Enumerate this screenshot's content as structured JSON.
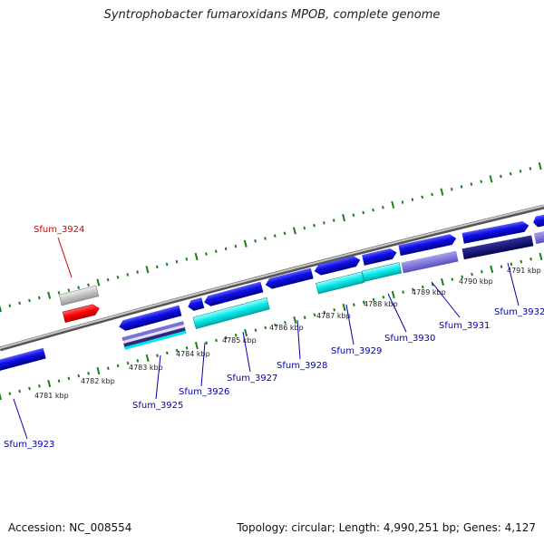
{
  "title": "Syntrophobacter fumaroxidans MPOB, complete genome",
  "accession_label": "Accession: NC_008554",
  "summary": "Topology: circular; Length: 4,990,251 bp; Genes: 4,127",
  "colors": {
    "forward_gene": "#1010e8",
    "cds_cyan": "#00e8e8",
    "highlight": "#ff0000",
    "label_blue": "#0000aa",
    "label_red": "#cc0000",
    "tick_green": "#1a7f1a",
    "backbone": "#8c8c8c",
    "lavender": "#7a70d8",
    "navy": "#0a0a70"
  },
  "ticks": [
    {
      "label": "4781 kbp"
    },
    {
      "label": "4782 kbp"
    },
    {
      "label": "4783 kbp"
    },
    {
      "label": "4784 kbp"
    },
    {
      "label": "4785 kbp"
    },
    {
      "label": "4786 kbp"
    },
    {
      "label": "4787 kbp"
    },
    {
      "label": "4788 kbp"
    },
    {
      "label": "4789 kbp"
    },
    {
      "label": "4790 kbp"
    },
    {
      "label": "4791 kbp"
    }
  ],
  "gene_labels": [
    {
      "name": "Sfum_3923",
      "color": "label_blue"
    },
    {
      "name": "Sfum_3924",
      "color": "label_red"
    },
    {
      "name": "Sfum_3925",
      "color": "label_blue"
    },
    {
      "name": "Sfum_3926",
      "color": "label_blue"
    },
    {
      "name": "Sfum_3927",
      "color": "label_blue"
    },
    {
      "name": "Sfum_3928",
      "color": "label_blue"
    },
    {
      "name": "Sfum_3929",
      "color": "label_blue"
    },
    {
      "name": "Sfum_3930",
      "color": "label_blue"
    },
    {
      "name": "Sfum_3931",
      "color": "label_blue"
    },
    {
      "name": "Sfum_3932",
      "color": "label_blue"
    }
  ]
}
